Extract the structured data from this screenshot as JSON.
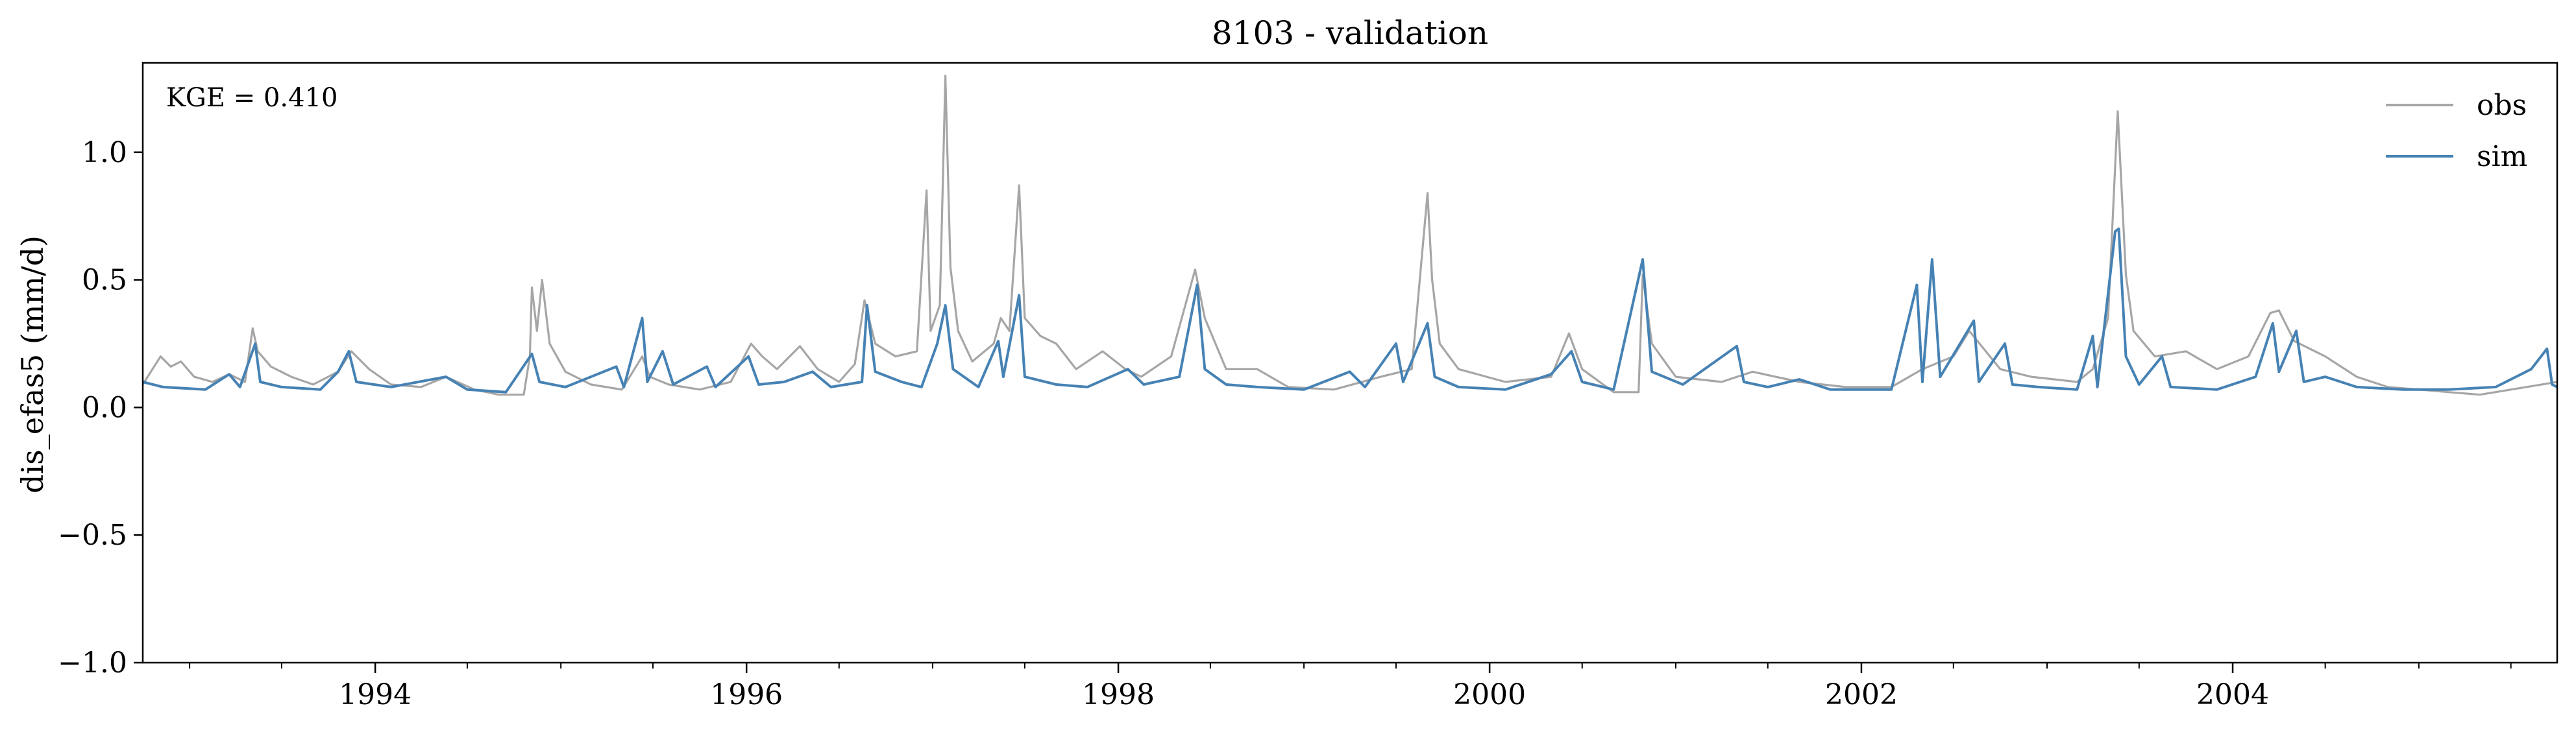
{
  "chart_data": {
    "type": "line",
    "title": "8103 - validation",
    "xlabel": "",
    "ylabel": "dis_efas5 (mm/d)",
    "annotation": "KGE = 0.410",
    "xlim": [
      "1992-10-01",
      "2005-09-30"
    ],
    "ylim": [
      -1.0,
      1.35
    ],
    "yticks": [
      1.0,
      0.5,
      0.0,
      -0.5,
      -1.0
    ],
    "ytick_labels": [
      "1.0",
      "0.5",
      "0.0",
      "−0.5",
      "−1.0"
    ],
    "xticks": [
      "1994-01-01",
      "1996-01-01",
      "1998-01-01",
      "2000-01-01",
      "2002-01-01",
      "2004-01-01"
    ],
    "xtick_labels": [
      "1994",
      "1996",
      "1998",
      "2000",
      "2002",
      "2004"
    ],
    "grid": false,
    "legend_position": "top-right",
    "series": [
      {
        "name": "obs",
        "color": "#a6a6a6",
        "points": [
          [
            "1992-10-01",
            0.09
          ],
          [
            "1992-10-20",
            0.15
          ],
          [
            "1992-11-05",
            0.2
          ],
          [
            "1992-11-25",
            0.16
          ],
          [
            "1992-12-15",
            0.18
          ],
          [
            "1993-01-10",
            0.12
          ],
          [
            "1993-02-15",
            0.1
          ],
          [
            "1993-03-20",
            0.13
          ],
          [
            "1993-04-20",
            0.1
          ],
          [
            "1993-05-05",
            0.31
          ],
          [
            "1993-05-15",
            0.22
          ],
          [
            "1993-06-10",
            0.16
          ],
          [
            "1993-07-20",
            0.12
          ],
          [
            "1993-09-01",
            0.09
          ],
          [
            "1993-10-20",
            0.14
          ],
          [
            "1993-11-15",
            0.22
          ],
          [
            "1993-12-20",
            0.15
          ],
          [
            "1994-02-01",
            0.09
          ],
          [
            "1994-04-01",
            0.08
          ],
          [
            "1994-05-20",
            0.12
          ],
          [
            "1994-07-15",
            0.07
          ],
          [
            "1994-09-01",
            0.05
          ],
          [
            "1994-10-20",
            0.05
          ],
          [
            "1994-11-01",
            0.2
          ],
          [
            "1994-11-05",
            0.47
          ],
          [
            "1994-11-15",
            0.3
          ],
          [
            "1994-11-25",
            0.5
          ],
          [
            "1994-12-10",
            0.25
          ],
          [
            "1995-01-10",
            0.14
          ],
          [
            "1995-03-01",
            0.09
          ],
          [
            "1995-05-01",
            0.07
          ],
          [
            "1995-06-10",
            0.2
          ],
          [
            "1995-06-25",
            0.12
          ],
          [
            "1995-08-01",
            0.09
          ],
          [
            "1995-10-01",
            0.07
          ],
          [
            "1995-12-01",
            0.1
          ],
          [
            "1996-01-10",
            0.25
          ],
          [
            "1996-02-01",
            0.2
          ],
          [
            "1996-03-01",
            0.15
          ],
          [
            "1996-04-15",
            0.24
          ],
          [
            "1996-05-20",
            0.15
          ],
          [
            "1996-07-01",
            0.1
          ],
          [
            "1996-08-01",
            0.17
          ],
          [
            "1996-08-20",
            0.42
          ],
          [
            "1996-09-10",
            0.25
          ],
          [
            "1996-10-20",
            0.2
          ],
          [
            "1996-12-01",
            0.22
          ],
          [
            "1996-12-20",
            0.85
          ],
          [
            "1996-12-28",
            0.3
          ],
          [
            "1997-01-15",
            0.4
          ],
          [
            "1997-01-20",
            0.8
          ],
          [
            "1997-01-26",
            1.3
          ],
          [
            "1997-02-05",
            0.55
          ],
          [
            "1997-02-20",
            0.3
          ],
          [
            "1997-03-20",
            0.18
          ],
          [
            "1997-05-01",
            0.25
          ],
          [
            "1997-05-15",
            0.35
          ],
          [
            "1997-06-01",
            0.3
          ],
          [
            "1997-06-20",
            0.87
          ],
          [
            "1997-07-01",
            0.35
          ],
          [
            "1997-08-01",
            0.28
          ],
          [
            "1997-09-01",
            0.25
          ],
          [
            "1997-10-10",
            0.15
          ],
          [
            "1997-12-01",
            0.22
          ],
          [
            "1998-01-15",
            0.15
          ],
          [
            "1998-02-15",
            0.12
          ],
          [
            "1998-04-15",
            0.2
          ],
          [
            "1998-06-01",
            0.54
          ],
          [
            "1998-06-20",
            0.35
          ],
          [
            "1998-08-01",
            0.15
          ],
          [
            "1998-10-01",
            0.15
          ],
          [
            "1998-12-01",
            0.08
          ],
          [
            "1999-03-01",
            0.07
          ],
          [
            "1999-06-01",
            0.12
          ],
          [
            "1999-08-01",
            0.15
          ],
          [
            "1999-09-01",
            0.84
          ],
          [
            "1999-09-10",
            0.5
          ],
          [
            "1999-09-25",
            0.25
          ],
          [
            "1999-11-01",
            0.15
          ],
          [
            "2000-02-01",
            0.1
          ],
          [
            "2000-05-01",
            0.12
          ],
          [
            "2000-06-05",
            0.29
          ],
          [
            "2000-07-01",
            0.15
          ],
          [
            "2000-09-01",
            0.06
          ],
          [
            "2000-10-20",
            0.06
          ],
          [
            "2000-10-28",
            0.52
          ],
          [
            "2000-11-15",
            0.25
          ],
          [
            "2001-01-01",
            0.12
          ],
          [
            "2001-04-01",
            0.1
          ],
          [
            "2001-06-01",
            0.14
          ],
          [
            "2001-09-01",
            0.1
          ],
          [
            "2001-12-01",
            0.08
          ],
          [
            "2002-03-01",
            0.08
          ],
          [
            "2002-05-01",
            0.15
          ],
          [
            "2002-07-01",
            0.2
          ],
          [
            "2002-08-01",
            0.3
          ],
          [
            "2002-10-01",
            0.15
          ],
          [
            "2002-12-01",
            0.12
          ],
          [
            "2003-03-01",
            0.1
          ],
          [
            "2003-04-01",
            0.15
          ],
          [
            "2003-05-01",
            0.35
          ],
          [
            "2003-05-20",
            1.16
          ],
          [
            "2003-06-05",
            0.52
          ],
          [
            "2003-06-20",
            0.3
          ],
          [
            "2003-08-01",
            0.2
          ],
          [
            "2003-10-01",
            0.22
          ],
          [
            "2003-12-01",
            0.15
          ],
          [
            "2004-02-01",
            0.2
          ],
          [
            "2004-03-15",
            0.37
          ],
          [
            "2004-04-01",
            0.38
          ],
          [
            "2004-05-01",
            0.26
          ],
          [
            "2004-07-01",
            0.2
          ],
          [
            "2004-09-01",
            0.12
          ],
          [
            "2004-11-01",
            0.08
          ],
          [
            "2005-01-01",
            0.07
          ],
          [
            "2005-03-01",
            0.06
          ],
          [
            "2005-05-01",
            0.05
          ],
          [
            "2005-07-01",
            0.07
          ],
          [
            "2005-09-30",
            0.1
          ]
        ]
      },
      {
        "name": "sim",
        "color": "#4682b4",
        "points": [
          [
            "1992-10-01",
            0.1
          ],
          [
            "1992-11-10",
            0.08
          ],
          [
            "1993-02-01",
            0.07
          ],
          [
            "1993-03-20",
            0.13
          ],
          [
            "1993-04-10",
            0.08
          ],
          [
            "1993-05-10",
            0.25
          ],
          [
            "1993-05-20",
            0.1
          ],
          [
            "1993-07-01",
            0.08
          ],
          [
            "1993-09-15",
            0.07
          ],
          [
            "1993-10-20",
            0.14
          ],
          [
            "1993-11-10",
            0.22
          ],
          [
            "1993-11-25",
            0.1
          ],
          [
            "1994-02-01",
            0.08
          ],
          [
            "1994-05-20",
            0.12
          ],
          [
            "1994-07-01",
            0.07
          ],
          [
            "1994-09-15",
            0.06
          ],
          [
            "1994-11-05",
            0.21
          ],
          [
            "1994-11-20",
            0.1
          ],
          [
            "1995-01-10",
            0.08
          ],
          [
            "1995-04-20",
            0.16
          ],
          [
            "1995-05-05",
            0.08
          ],
          [
            "1995-06-10",
            0.35
          ],
          [
            "1995-06-20",
            0.1
          ],
          [
            "1995-07-20",
            0.22
          ],
          [
            "1995-08-10",
            0.09
          ],
          [
            "1995-10-15",
            0.16
          ],
          [
            "1995-11-01",
            0.08
          ],
          [
            "1996-01-05",
            0.2
          ],
          [
            "1996-01-25",
            0.09
          ],
          [
            "1996-03-15",
            0.1
          ],
          [
            "1996-05-10",
            0.14
          ],
          [
            "1996-06-15",
            0.08
          ],
          [
            "1996-08-15",
            0.1
          ],
          [
            "1996-08-25",
            0.4
          ],
          [
            "1996-09-10",
            0.14
          ],
          [
            "1996-11-01",
            0.1
          ],
          [
            "1996-12-10",
            0.08
          ],
          [
            "1997-01-10",
            0.25
          ],
          [
            "1997-01-26",
            0.4
          ],
          [
            "1997-02-10",
            0.15
          ],
          [
            "1997-04-01",
            0.08
          ],
          [
            "1997-05-10",
            0.26
          ],
          [
            "1997-05-20",
            0.12
          ],
          [
            "1997-06-20",
            0.44
          ],
          [
            "1997-07-01",
            0.12
          ],
          [
            "1997-09-01",
            0.09
          ],
          [
            "1997-11-01",
            0.08
          ],
          [
            "1998-01-20",
            0.15
          ],
          [
            "1998-02-20",
            0.09
          ],
          [
            "1998-05-01",
            0.12
          ],
          [
            "1998-06-05",
            0.48
          ],
          [
            "1998-06-20",
            0.15
          ],
          [
            "1998-08-01",
            0.09
          ],
          [
            "1998-10-01",
            0.08
          ],
          [
            "1999-01-01",
            0.07
          ],
          [
            "1999-04-01",
            0.14
          ],
          [
            "1999-05-01",
            0.08
          ],
          [
            "1999-07-01",
            0.25
          ],
          [
            "1999-07-15",
            0.1
          ],
          [
            "1999-09-01",
            0.33
          ],
          [
            "1999-09-15",
            0.12
          ],
          [
            "1999-11-01",
            0.08
          ],
          [
            "2000-02-01",
            0.07
          ],
          [
            "2000-05-01",
            0.13
          ],
          [
            "2000-06-10",
            0.22
          ],
          [
            "2000-07-01",
            0.1
          ],
          [
            "2000-09-01",
            0.07
          ],
          [
            "2000-10-28",
            0.58
          ],
          [
            "2000-11-15",
            0.14
          ],
          [
            "2001-01-15",
            0.09
          ],
          [
            "2001-05-01",
            0.24
          ],
          [
            "2001-05-15",
            0.1
          ],
          [
            "2001-07-01",
            0.08
          ],
          [
            "2001-09-01",
            0.11
          ],
          [
            "2001-11-01",
            0.07
          ],
          [
            "2002-03-01",
            0.07
          ],
          [
            "2002-04-20",
            0.48
          ],
          [
            "2002-05-01",
            0.1
          ],
          [
            "2002-05-20",
            0.58
          ],
          [
            "2002-06-05",
            0.12
          ],
          [
            "2002-08-10",
            0.34
          ],
          [
            "2002-08-20",
            0.1
          ],
          [
            "2002-10-10",
            0.25
          ],
          [
            "2002-10-25",
            0.09
          ],
          [
            "2002-12-15",
            0.08
          ],
          [
            "2003-03-01",
            0.07
          ],
          [
            "2003-04-01",
            0.28
          ],
          [
            "2003-04-10",
            0.08
          ],
          [
            "2003-05-15",
            0.69
          ],
          [
            "2003-05-22",
            0.7
          ],
          [
            "2003-06-05",
            0.2
          ],
          [
            "2003-07-01",
            0.09
          ],
          [
            "2003-08-15",
            0.2
          ],
          [
            "2003-09-01",
            0.08
          ],
          [
            "2003-12-01",
            0.07
          ],
          [
            "2004-02-15",
            0.12
          ],
          [
            "2004-03-20",
            0.33
          ],
          [
            "2004-04-01",
            0.14
          ],
          [
            "2004-05-05",
            0.3
          ],
          [
            "2004-05-20",
            0.1
          ],
          [
            "2004-07-01",
            0.12
          ],
          [
            "2004-09-01",
            0.08
          ],
          [
            "2004-12-01",
            0.07
          ],
          [
            "2005-03-01",
            0.07
          ],
          [
            "2005-06-01",
            0.08
          ],
          [
            "2005-08-10",
            0.15
          ],
          [
            "2005-09-10",
            0.23
          ],
          [
            "2005-09-20",
            0.09
          ],
          [
            "2005-09-30",
            0.08
          ]
        ]
      }
    ]
  }
}
